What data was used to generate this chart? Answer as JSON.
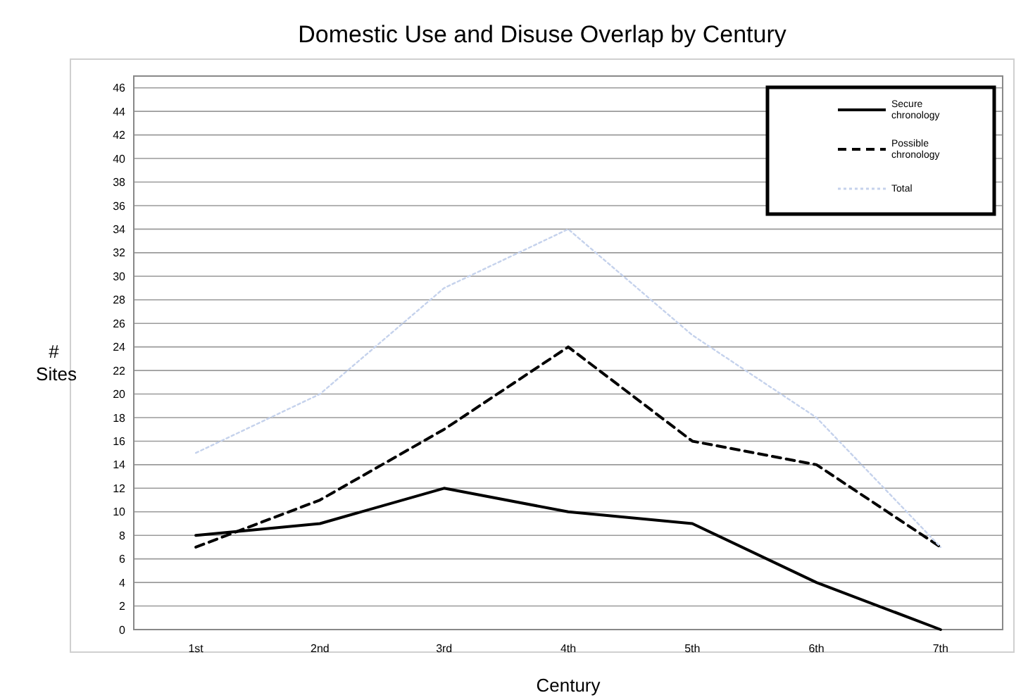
{
  "chart_data": {
    "type": "line",
    "title": "Domestic Use and Disuse Overlap by Century",
    "xlabel": "Century",
    "ylabel": "# Sites",
    "categories": [
      "1st",
      "2nd",
      "3rd",
      "4th",
      "5th",
      "6th",
      "7th"
    ],
    "series": [
      {
        "name": "Secure chronology",
        "color": "#000000",
        "line_style": "solid",
        "values": [
          8,
          9,
          12,
          10,
          9,
          4,
          0
        ]
      },
      {
        "name": "Possible chronology",
        "color": "#000000",
        "line_style": "dashed",
        "values": [
          7,
          11,
          17,
          24,
          16,
          14,
          7
        ]
      },
      {
        "name": "Total",
        "color": "#c5d2ec",
        "line_style": "dotted",
        "values": [
          15,
          20,
          29,
          34,
          25,
          18,
          7
        ]
      }
    ],
    "ylim": [
      0,
      47
    ],
    "yticks": [
      0,
      2,
      4,
      6,
      8,
      10,
      12,
      14,
      16,
      18,
      20,
      22,
      24,
      26,
      28,
      30,
      32,
      34,
      36,
      38,
      40,
      42,
      44,
      46
    ],
    "grid": "y",
    "legend": "top right",
    "marker": "none"
  }
}
